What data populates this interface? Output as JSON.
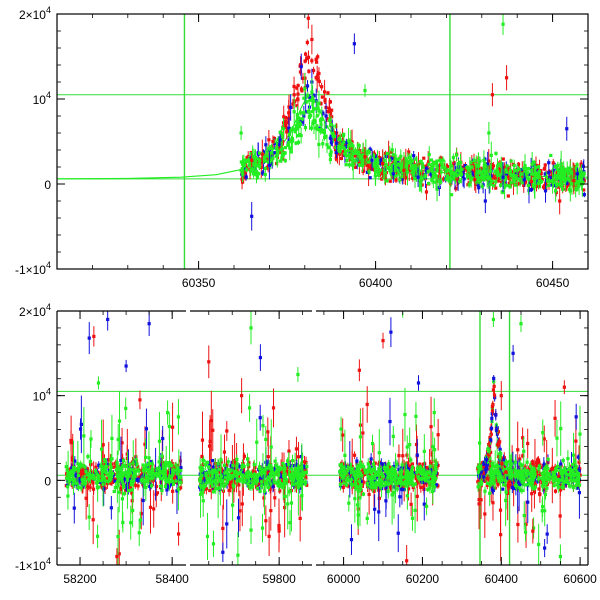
{
  "colors": {
    "red": "#ee1111",
    "blue": "#1111dd",
    "green": "#22ee22",
    "ref_line": "#33dd33",
    "axis": "#000000"
  },
  "chart_data": [
    {
      "type": "scatter",
      "title": "",
      "xlabel": "",
      "ylabel": "",
      "xlim": [
        60310,
        60460
      ],
      "ylim": [
        -10000,
        20000
      ],
      "x_ticks": [
        {
          "value": 60350,
          "label": "60350"
        },
        {
          "value": 60400,
          "label": "60400"
        },
        {
          "value": 60450,
          "label": "60450"
        }
      ],
      "y_ticks": [
        {
          "value": 20000,
          "base": "2×10",
          "exp": "4"
        },
        {
          "value": 10000,
          "base": "10",
          "exp": "4"
        },
        {
          "value": 0,
          "base": "0",
          "exp": ""
        },
        {
          "value": -10000,
          "base": "-1×10",
          "exp": "4"
        }
      ],
      "reference_lines": {
        "horizontal": [
          10500,
          600
        ],
        "vertical": [
          60346,
          60421
        ]
      },
      "model_curve": {
        "x": [
          60310,
          60330,
          60345,
          60355,
          60362,
          60368,
          60372,
          60376,
          60379,
          60381,
          60383,
          60386,
          60390,
          60395,
          60402,
          60410,
          60420,
          60430,
          60445,
          60460
        ],
        "y": [
          600,
          650,
          800,
          1100,
          1700,
          2600,
          3800,
          6000,
          9000,
          10500,
          9800,
          7000,
          4500,
          3000,
          2200,
          1700,
          1300,
          1100,
          900,
          800
        ]
      },
      "series": [
        {
          "color": "red",
          "points": [
            [
              60365,
              2800
            ],
            [
              60368,
              3500
            ],
            [
              60371,
              5000
            ],
            [
              60374,
              7200
            ],
            [
              60377,
              10500
            ],
            [
              60379,
              14000
            ],
            [
              60381,
              19500
            ],
            [
              60382,
              17000
            ],
            [
              60384,
              13000
            ],
            [
              60386,
              9000
            ],
            [
              60389,
              6000
            ],
            [
              60393,
              4200
            ],
            [
              60397,
              3200
            ],
            [
              60402,
              2400
            ],
            [
              60408,
              1600
            ],
            [
              60413,
              1200
            ],
            [
              60418,
              900
            ],
            [
              60423,
              600
            ],
            [
              60428,
              500
            ],
            [
              60433,
              10500
            ],
            [
              60437,
              12500
            ],
            [
              60440,
              600
            ],
            [
              60444,
              300
            ],
            [
              60448,
              0
            ],
            [
              60452,
              -2000
            ],
            [
              60456,
              400
            ]
          ]
        },
        {
          "color": "blue",
          "points": [
            [
              60365,
              -3800
            ],
            [
              60370,
              2200
            ],
            [
              60373,
              5200
            ],
            [
              60376,
              9000
            ],
            [
              60379,
              13800
            ],
            [
              60382,
              12000
            ],
            [
              60386,
              8000
            ],
            [
              60389,
              4800
            ],
            [
              60394,
              16500
            ],
            [
              60399,
              2800
            ],
            [
              60405,
              1200
            ],
            [
              60412,
              800
            ],
            [
              60418,
              -400
            ],
            [
              60425,
              600
            ],
            [
              60431,
              -2000
            ],
            [
              60436,
              800
            ],
            [
              60442,
              500
            ],
            [
              60448,
              -800
            ],
            [
              60454,
              6500
            ],
            [
              60457,
              1200
            ]
          ]
        },
        {
          "color": "green",
          "points": [
            [
              60362,
              6000
            ],
            [
              60366,
              2400
            ],
            [
              60369,
              3200
            ],
            [
              60372,
              4200
            ],
            [
              60374,
              6500
            ],
            [
              60377,
              8500
            ],
            [
              60380,
              11200
            ],
            [
              60382,
              10800
            ],
            [
              60384,
              9500
            ],
            [
              60387,
              7500
            ],
            [
              60390,
              5200
            ],
            [
              60393,
              4500
            ],
            [
              60397,
              11000
            ],
            [
              60400,
              1400
            ],
            [
              60404,
              2800
            ],
            [
              60409,
              1400
            ],
            [
              60413,
              700
            ],
            [
              60418,
              300
            ],
            [
              60423,
              1600
            ],
            [
              60427,
              500
            ],
            [
              60432,
              6000
            ],
            [
              60436,
              18800
            ],
            [
              60440,
              600
            ],
            [
              60445,
              1200
            ],
            [
              60450,
              400
            ],
            [
              60455,
              -800
            ],
            [
              60458,
              900
            ]
          ]
        }
      ]
    },
    {
      "type": "scatter",
      "title": "",
      "xlabel": "",
      "ylabel": "",
      "xlim": [
        58150,
        60620
      ],
      "ylim": [
        -10000,
        20000
      ],
      "note": "broken x axis with three gaps",
      "segments": [
        {
          "x_range": [
            58150,
            58430
          ],
          "season": [
            58170,
            58420
          ]
        },
        {
          "x_range": [
            59610,
            59870
          ],
          "season": [
            59630,
            59860
          ]
        },
        {
          "x_range": [
            59930,
            60620
          ],
          "season": [
            59990,
            60240
          ]
        },
        {
          "x_range": [
            59930,
            60620
          ],
          "season": [
            60340,
            60600
          ]
        }
      ],
      "x_ticks": [
        {
          "value": 58200,
          "label": "58200"
        },
        {
          "value": 58400,
          "label": "58400"
        },
        {
          "value": 59800,
          "label": "59800"
        },
        {
          "value": 60000,
          "label": "60000"
        },
        {
          "value": 60200,
          "label": "60200"
        },
        {
          "value": 60400,
          "label": "60400"
        },
        {
          "value": 60600,
          "label": "60600"
        }
      ],
      "y_ticks": [
        {
          "value": 20000,
          "base": "2×10",
          "exp": "4"
        },
        {
          "value": 10000,
          "base": "10",
          "exp": "4"
        },
        {
          "value": 0,
          "base": "0",
          "exp": ""
        },
        {
          "value": -10000,
          "base": "-1×10",
          "exp": "4"
        }
      ],
      "reference_lines": {
        "horizontal": [
          10500,
          600
        ],
        "vertical": [
          60346,
          60421
        ]
      },
      "event": {
        "x": [
          60350,
          60365,
          60375,
          60381,
          60388,
          60400,
          60420
        ],
        "y": [
          600,
          2000,
          6000,
          12500,
          6000,
          2000,
          900
        ]
      },
      "series": [
        {
          "color": "red",
          "points": [
            [
              58230,
              17000
            ],
            [
              58280,
              -9000
            ],
            [
              58330,
              9500
            ],
            [
              59650,
              14000
            ],
            [
              59720,
              10000
            ],
            [
              59800,
              -6000
            ],
            [
              60040,
              13000
            ],
            [
              60100,
              16500
            ],
            [
              60160,
              -9500
            ],
            [
              60400,
              10000
            ],
            [
              60480,
              -6000
            ],
            [
              60560,
              11000
            ]
          ]
        },
        {
          "color": "blue",
          "points": [
            [
              58220,
              16800
            ],
            [
              58260,
              19000
            ],
            [
              58300,
              13500
            ],
            [
              58350,
              18500
            ],
            [
              59680,
              -8500
            ],
            [
              59760,
              14500
            ],
            [
              60020,
              -7000
            ],
            [
              60120,
              17500
            ],
            [
              60190,
              11500
            ],
            [
              60430,
              15000
            ],
            [
              60510,
              -8000
            ],
            [
              60590,
              7500
            ]
          ]
        },
        {
          "color": "green",
          "points": [
            [
              58240,
              11500
            ],
            [
              58310,
              -5000
            ],
            [
              58390,
              8000
            ],
            [
              59660,
              -7500
            ],
            [
              59740,
              18000
            ],
            [
              59840,
              12500
            ],
            [
              60060,
              -4500
            ],
            [
              60150,
              21000
            ],
            [
              60230,
              8000
            ],
            [
              60380,
              19000
            ],
            [
              60450,
              18500
            ],
            [
              60550,
              -9000
            ]
          ]
        }
      ]
    }
  ]
}
